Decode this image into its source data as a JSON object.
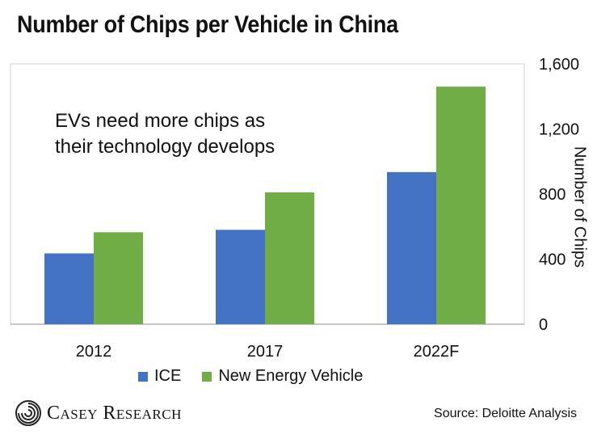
{
  "header": {
    "title": "Number of Chips per Vehicle in China"
  },
  "annotation": {
    "line1": "EVs need more chips as",
    "line2": "their technology develops"
  },
  "footer": {
    "logo_text": "Casey Research",
    "source": "Source: Deloitte Analysis"
  },
  "colors": {
    "ice": "#4472C4",
    "nev": "#70AD47",
    "axis": "#8C8C8C",
    "frame": "#D0D0D0"
  },
  "chart_data": {
    "type": "bar",
    "title": "Number of Chips per Vehicle in China",
    "categories": [
      "2012",
      "2017",
      "2022F"
    ],
    "series": [
      {
        "name": "ICE",
        "values": [
          435,
          580,
          935
        ]
      },
      {
        "name": "New Energy Vehicle",
        "values": [
          565,
          810,
          1460
        ]
      }
    ],
    "xlabel": "",
    "ylabel": "Number of Chips",
    "ylim": [
      0,
      1600
    ],
    "yticks": [
      0,
      400,
      800,
      1200,
      "1,600"
    ],
    "ytick_labels": [
      "0",
      "400",
      "800",
      "1,200",
      "1,600"
    ],
    "y_axis_side": "right",
    "legend_position": "bottom",
    "grid": false
  }
}
